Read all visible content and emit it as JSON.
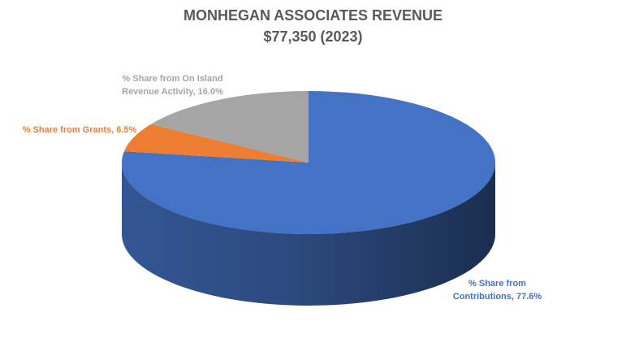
{
  "chart_data": {
    "type": "pie3d",
    "title": "MONHEGAN ASSOCIATES REVENUE",
    "subtitle": "$77,350 (2023)",
    "values": [
      77.6,
      6.5,
      16.0
    ],
    "value_labels": [
      "% Share from Contributions, 77.6%",
      "% Share from Grants, 6.5%",
      "% Share from On Island Revenue Activity, 16.0%"
    ],
    "colors": [
      "#4472c4",
      "#ed7d31",
      "#a5a5a5"
    ]
  }
}
